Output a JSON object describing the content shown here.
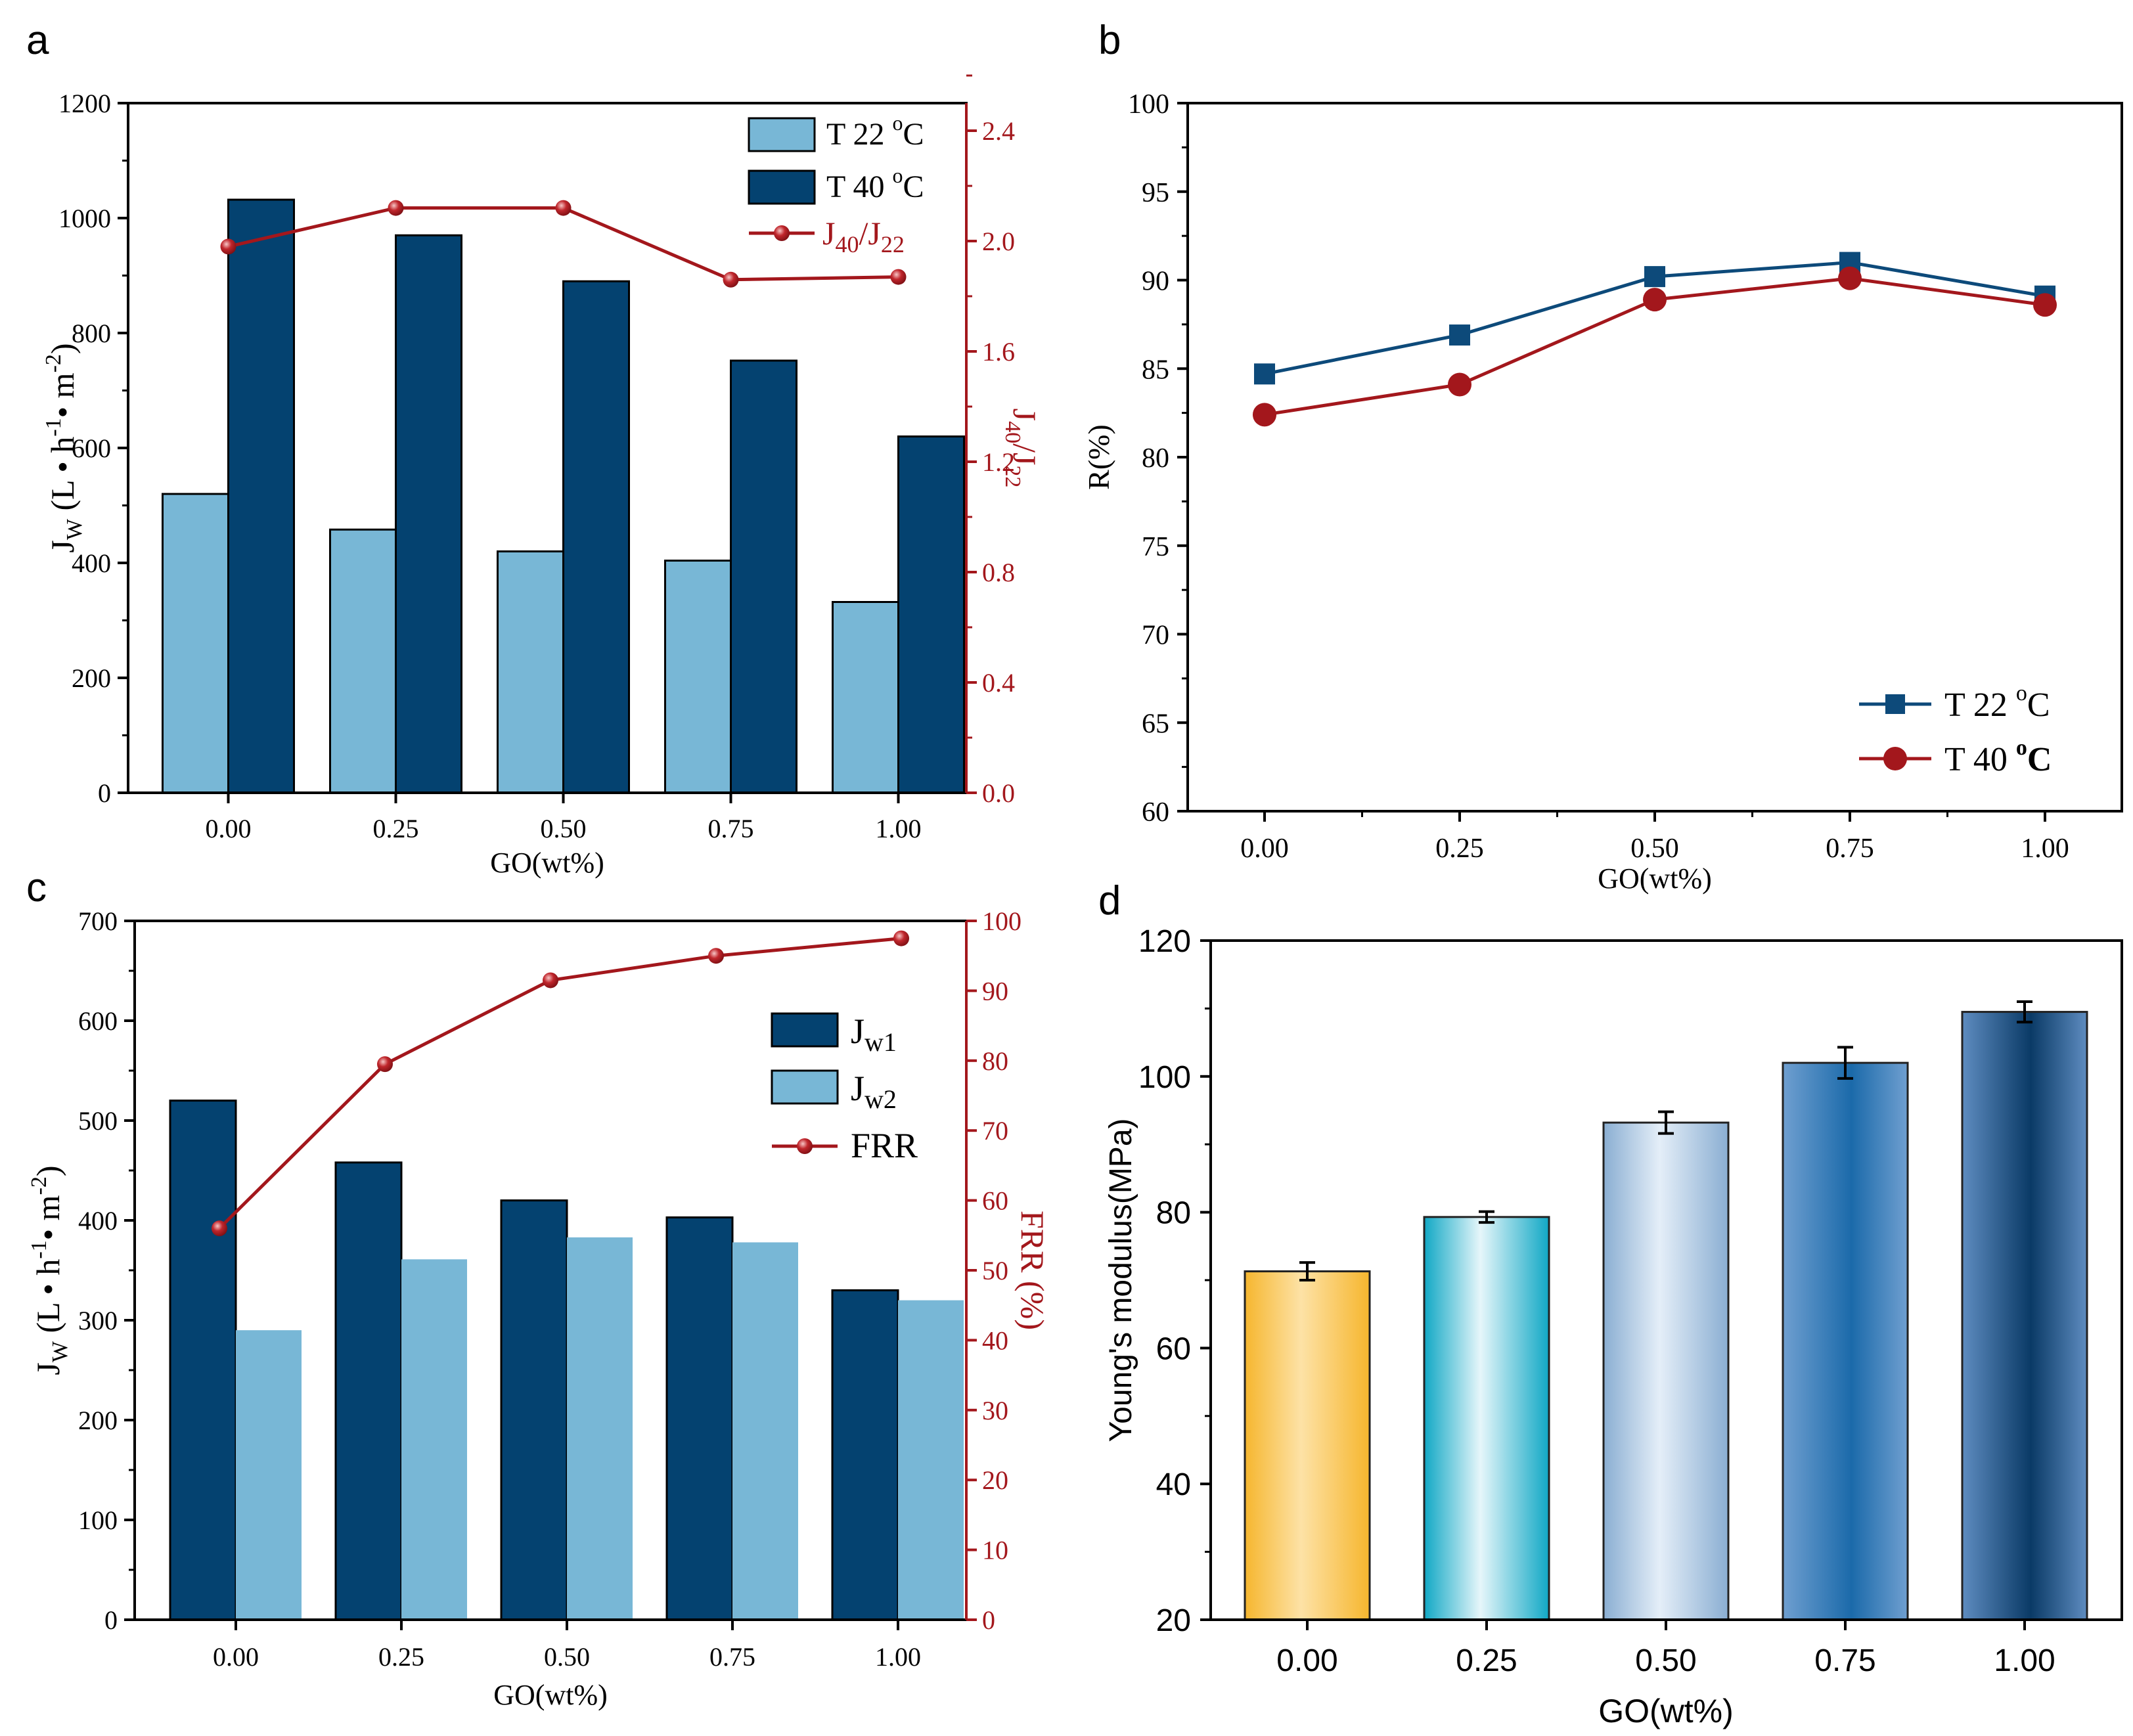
{
  "colors": {
    "light_blue": "#78b7d6",
    "dark_blue": "#044270",
    "red": "#a3171c",
    "navy_line": "#0d4a7a"
  },
  "chart_data": [
    {
      "id": "a",
      "panel_label": "a",
      "type": "bar",
      "categories": [
        "0.00",
        "0.25",
        "0.50",
        "0.75",
        "1.00"
      ],
      "series": [
        {
          "name": "T 22 °C",
          "legend_main": "T 22 ",
          "legend_sup": "o",
          "legend_tail": "C",
          "values": [
            520,
            458,
            420,
            404,
            332
          ]
        },
        {
          "name": "T 40 °C",
          "legend_main": "T 40 ",
          "legend_sup": "o",
          "legend_tail": "C",
          "values": [
            1032,
            970,
            890,
            752,
            620
          ]
        }
      ],
      "line_series": {
        "name": "J40/J22",
        "legend_main": "J",
        "legend_sub1": "40",
        "legend_mid": "/J",
        "legend_sub2": "22",
        "values": [
          1.98,
          2.12,
          2.12,
          1.86,
          1.87
        ]
      },
      "xlabel": "GO(wt%)",
      "ylabel": {
        "main": "J",
        "sub": "W",
        "text1": " (L • h",
        "sup1": "-1",
        "text2": "• m",
        "sup2": "-2",
        "close": ")"
      },
      "y2label": {
        "main": "J",
        "sub1": "40",
        "mid": "/J",
        "sub2": "22"
      },
      "ylim": [
        0,
        1200
      ],
      "yticks": [
        "0",
        "200",
        "400",
        "600",
        "800",
        "1000",
        "1200"
      ],
      "y2lim": [
        0,
        2.5
      ],
      "y2ticks": [
        "0.0",
        "0.4",
        "0.8",
        "1.2",
        "1.6",
        "2.0",
        "2.4"
      ]
    },
    {
      "id": "b",
      "panel_label": "b",
      "type": "line",
      "x": [
        "0.00",
        "0.25",
        "0.50",
        "0.75",
        "1.00"
      ],
      "series": [
        {
          "name": "T 22 °C",
          "legend_main": "T 22 ",
          "legend_sup": "o",
          "legend_tail": "C",
          "marker": "square",
          "values": [
            84.7,
            86.9,
            90.2,
            91.0,
            89.1
          ]
        },
        {
          "name": "T 40 °C",
          "legend_main": "T 40 ",
          "legend_sup": "o",
          "legend_tail": "C",
          "marker": "circle",
          "values": [
            82.4,
            84.1,
            88.9,
            90.1,
            88.6
          ]
        }
      ],
      "xlabel": "GO(wt%)",
      "ylabel": "R(%)",
      "ylim": [
        60,
        100
      ],
      "yticks": [
        "60",
        "65",
        "70",
        "75",
        "80",
        "85",
        "90",
        "95",
        "100"
      ]
    },
    {
      "id": "c",
      "panel_label": "c",
      "type": "bar",
      "categories": [
        "0.00",
        "0.25",
        "0.50",
        "0.75",
        "1.00"
      ],
      "series": [
        {
          "name": "Jw1",
          "legend_main": "J",
          "legend_sub": "w1",
          "values": [
            520,
            458,
            420,
            403,
            330
          ]
        },
        {
          "name": "Jw2",
          "legend_main": "J",
          "legend_sub": "w2",
          "values": [
            290,
            361,
            383,
            378,
            320
          ]
        }
      ],
      "line_series": {
        "name": "FRR",
        "values": [
          56,
          79.5,
          91.5,
          95,
          97.5
        ]
      },
      "xlabel": "GO(wt%)",
      "ylabel": {
        "main": "J",
        "sub": "W",
        "text1": " (L • h",
        "sup1": "-1",
        "text2": "• m",
        "sup2": "-2",
        "close": ")"
      },
      "y2label": "FRR (%)",
      "ylim": [
        0,
        700
      ],
      "yticks": [
        "0",
        "100",
        "200",
        "300",
        "400",
        "500",
        "600",
        "700"
      ],
      "y2lim": [
        0,
        100
      ],
      "y2ticks": [
        "0",
        "10",
        "20",
        "30",
        "40",
        "50",
        "60",
        "70",
        "80",
        "90",
        "100"
      ]
    },
    {
      "id": "d",
      "panel_label": "d",
      "type": "bar",
      "categories": [
        "0.00",
        "0.25",
        "0.50",
        "0.75",
        "1.00"
      ],
      "values": [
        71.3,
        79.3,
        93.2,
        102.0,
        109.5
      ],
      "errors": [
        1.3,
        0.8,
        1.6,
        2.3,
        1.5
      ],
      "xlabel": "GO(wt%)",
      "ylabel": "Young's modulus(MPa)",
      "ylim": [
        20,
        120
      ],
      "yticks": [
        "20",
        "40",
        "60",
        "80",
        "100",
        "120"
      ]
    }
  ]
}
